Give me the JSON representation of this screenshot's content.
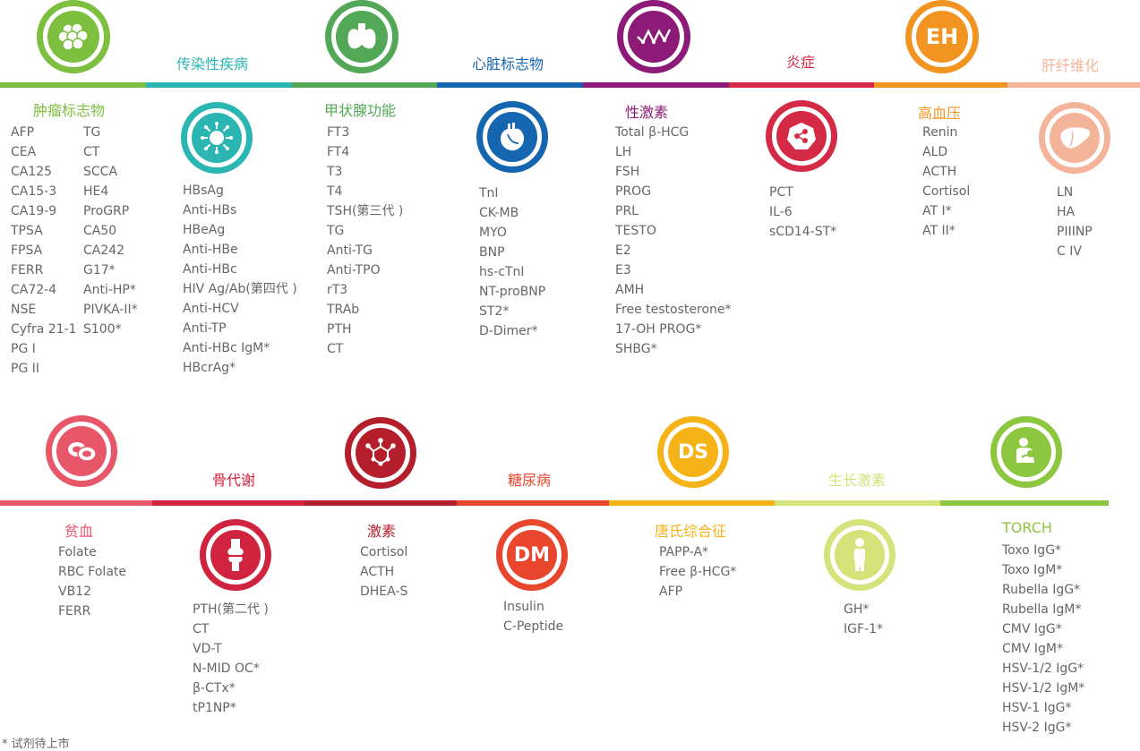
{
  "categories": {
    "tumor": {
      "title": "肿瘤标志物",
      "color": "#7dbf3f",
      "items_col1": [
        "AFP",
        "CEA",
        "CA125",
        "CA15-3",
        "CA19-9",
        "TPSA",
        "FPSA",
        "FERR",
        "CA72-4",
        "NSE",
        "Cyfra 21-1",
        "PG I",
        "PG II"
      ],
      "items_col2": [
        "TG",
        "CT",
        "SCCA",
        "HE4",
        "ProGRP",
        "CA50",
        "CA242",
        "G17*",
        "Anti-HP*",
        "PIVKA-II*",
        "S100*"
      ]
    },
    "infectious": {
      "title": "传染性疾病",
      "color": "#2bb6b3",
      "items": [
        "HBsAg",
        "Anti-HBs",
        "HBeAg",
        "Anti-HBe",
        "Anti-HBc",
        "HIV Ag/Ab(第四代 )",
        "Anti-HCV",
        "Anti-TP",
        "Anti-HBc IgM*",
        "HBcrAg*"
      ]
    },
    "thyroid": {
      "title": "甲状腺功能",
      "color": "#52a856",
      "items": [
        "FT3",
        "FT4",
        "T3",
        "T4",
        "TSH(第三代 )",
        "TG",
        "Anti-TG",
        "Anti-TPO",
        "rT3",
        "TRAb",
        "PTH",
        "CT"
      ]
    },
    "cardiac": {
      "title": "心脏标志物",
      "color": "#1565b0",
      "items": [
        "TnI",
        "CK-MB",
        "MYO",
        "BNP",
        "hs-cTnI",
        "NT-proBNP",
        "ST2*",
        "D-Dimer*"
      ]
    },
    "hormone": {
      "title": "性激素",
      "color": "#8c1a76",
      "items": [
        "Total β-HCG",
        "LH",
        "FSH",
        "PROG",
        "PRL",
        "TESTO",
        "E2",
        "E3",
        "AMH",
        "Free testosterone*",
        "17-OH PROG*",
        "SHBG*"
      ]
    },
    "inflammation": {
      "title": "炎症",
      "color": "#d42a45",
      "items": [
        "PCT",
        "IL-6",
        "sCD14-ST*"
      ]
    },
    "hypertension": {
      "title": "高血压",
      "color": "#f29421",
      "icon_text": "EH",
      "items": [
        "Renin",
        "ALD",
        "ACTH",
        "Cortisol",
        "AT I*",
        "AT II*"
      ]
    },
    "liver": {
      "title": "肝纤维化",
      "color": "#f4b49a",
      "items": [
        "LN",
        "HA",
        "PIIINP",
        "C IV"
      ]
    },
    "anemia": {
      "title": "贫血",
      "color": "#e8566a",
      "items": [
        "Folate",
        "RBC Folate",
        "VB12",
        "FERR"
      ]
    },
    "bone": {
      "title": "骨代谢",
      "color": "#d0233f",
      "items": [
        "PTH(第二代 )",
        "CT",
        "VD-T",
        "N-MID OC*",
        "β-CTx*",
        "tP1NP*"
      ]
    },
    "hormones": {
      "title": "激素",
      "color": "#b51f2c",
      "items": [
        "Cortisol",
        "ACTH",
        "DHEA-S"
      ]
    },
    "diabetes": {
      "title": "糖尿病",
      "color": "#e8462d",
      "icon_text": "DM",
      "items": [
        "Insulin",
        "C-Peptide"
      ]
    },
    "down": {
      "title": "唐氏综合征",
      "color": "#f5b318",
      "icon_text": "DS",
      "items": [
        "PAPP-A*",
        "Free β-HCG*",
        "AFP"
      ]
    },
    "growth": {
      "title": "生长激素",
      "color": "#d6e27a",
      "items": [
        "GH*",
        "IGF-1*"
      ]
    },
    "torch": {
      "title": "TORCH",
      "color": "#8dc63f",
      "items": [
        "Toxo IgG*",
        "Toxo IgM*",
        "Rubella IgG*",
        "Rubella IgM*",
        "CMV IgG*",
        "CMV IgM*",
        "HSV-1/2 IgG*",
        "HSV-1/2 IgM*",
        "HSV-1 IgG*",
        "HSV-2 IgG*"
      ]
    }
  },
  "footnote": "* 试剂待上市"
}
